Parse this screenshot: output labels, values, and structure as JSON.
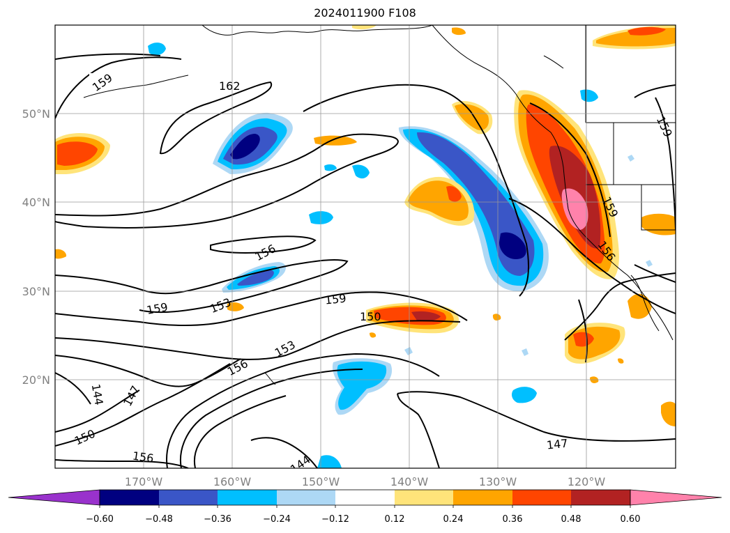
{
  "title": "2024011900 F108",
  "map": {
    "lat_labels": [
      "20°N",
      "30°N",
      "40°N",
      "50°N"
    ],
    "lon_labels": [
      "170°W",
      "160°W",
      "150°W",
      "140°W",
      "130°W",
      "120°W"
    ],
    "contour_labels": [
      "159",
      "162",
      "156",
      "159",
      "153",
      "159",
      "150",
      "153",
      "156",
      "144",
      "147",
      "150",
      "156",
      "144",
      "147",
      "159",
      "156",
      "159"
    ],
    "grid": true,
    "projection": "lat-lon",
    "extent": {
      "lon": [
        -180,
        -110
      ],
      "lat": [
        10,
        60
      ]
    }
  },
  "colorbar": {
    "ticks": [
      "−0.60",
      "−0.48",
      "−0.36",
      "−0.24",
      "−0.12",
      "0.12",
      "0.24",
      "0.36",
      "0.48",
      "0.60"
    ],
    "colors": [
      "#9932cc",
      "#000080",
      "#3a56c7",
      "#00bfff",
      "#add8f5",
      "#ffffff",
      "#ffe47a",
      "#ffa500",
      "#ff4500",
      "#b22222",
      "#ff82ab"
    ],
    "extend": "both"
  }
}
